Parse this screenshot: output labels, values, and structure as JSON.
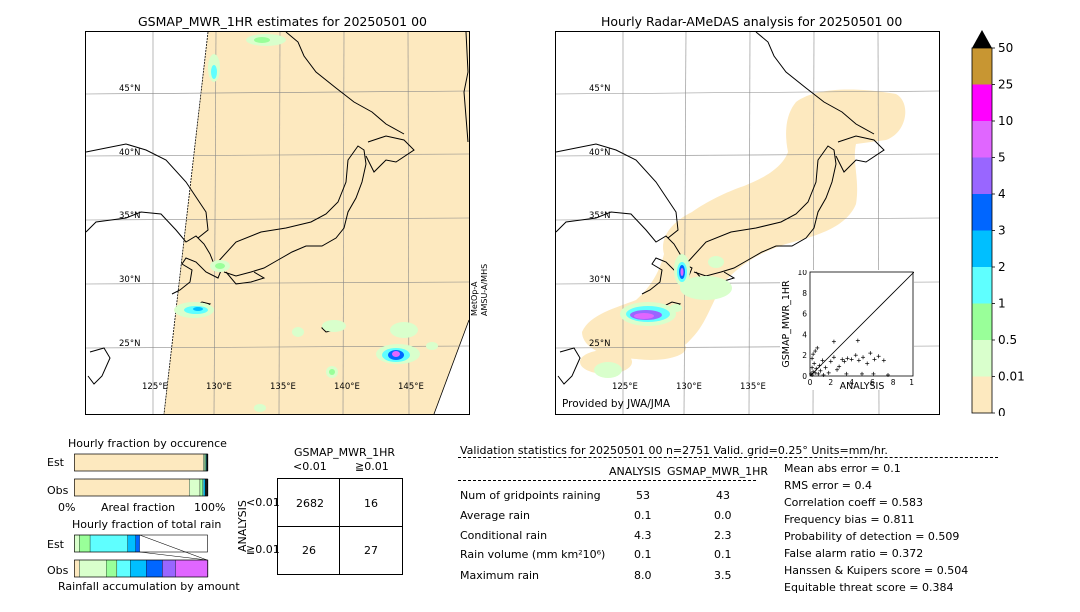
{
  "left_map": {
    "title": "GSMAP_MWR_1HR estimates for 20250501 00",
    "side_label_1": "MetOp-A",
    "side_label_2": "AMSU-A/MHS",
    "lat_labels": [
      "45°N",
      "40°N",
      "35°N",
      "30°N",
      "25°N"
    ],
    "lon_labels": [
      "125°E",
      "130°E",
      "135°E",
      "140°E",
      "145°E"
    ]
  },
  "right_map": {
    "title": "Hourly Radar-AMeDAS analysis for 20250501 00",
    "credit": "Provided by JWA/JMA",
    "lat_labels": [
      "45°N",
      "40°N",
      "35°N",
      "30°N",
      "25°N"
    ],
    "lon_labels": [
      "125°E",
      "130°E",
      "135°E"
    ]
  },
  "colorbar": {
    "labels": [
      "50",
      "25",
      "10",
      "5",
      "4",
      "3",
      "2",
      "1",
      "0.5",
      "0.01",
      "0"
    ],
    "colors": [
      "#c89632",
      "#ff00ff",
      "#e066ff",
      "#9966ff",
      "#0066ff",
      "#00bfff",
      "#5fffff",
      "#99ff99",
      "#d9ffcc",
      "#fde9bf"
    ],
    "extend_color": "#000000"
  },
  "chart_data": [
    {
      "type": "scatter",
      "name_hint": "inset",
      "xlabel": "ANALYSIS",
      "ylabel": "GSMAP_MWR_1HR",
      "xlim": [
        0,
        10
      ],
      "ylim": [
        0,
        10
      ],
      "ticks": [
        "0",
        "2",
        "4",
        "6",
        "8",
        "10"
      ],
      "points": [
        [
          0.1,
          0.2
        ],
        [
          0.2,
          0.1
        ],
        [
          0.3,
          0.4
        ],
        [
          0.2,
          0.8
        ],
        [
          0.5,
          0.3
        ],
        [
          0.4,
          1.2
        ],
        [
          0.6,
          0.7
        ],
        [
          0.8,
          0.2
        ],
        [
          1.0,
          0.5
        ],
        [
          0.3,
          2.1
        ],
        [
          0.5,
          2.4
        ],
        [
          1.2,
          1.5
        ],
        [
          1.5,
          0.8
        ],
        [
          0.2,
          1.7
        ],
        [
          2.0,
          1.4
        ],
        [
          2.3,
          1.8
        ],
        [
          2.6,
          0.6
        ],
        [
          3.1,
          1.6
        ],
        [
          3.3,
          1.4
        ],
        [
          3.6,
          1.7
        ],
        [
          4.0,
          1.6
        ],
        [
          4.4,
          2.0
        ],
        [
          4.7,
          1.5
        ],
        [
          5.1,
          1.8
        ],
        [
          5.5,
          1.2
        ],
        [
          5.8,
          2.2
        ],
        [
          6.2,
          1.6
        ],
        [
          6.6,
          1.9
        ],
        [
          7.1,
          1.5
        ],
        [
          4.6,
          3.4
        ],
        [
          2.3,
          3.3
        ],
        [
          0.7,
          2.7
        ],
        [
          1.8,
          0.3
        ],
        [
          3.5,
          0.2
        ],
        [
          5.0,
          0.2
        ],
        [
          6.1,
          0.2
        ],
        [
          7.5,
          0.1
        ],
        [
          1.3,
          0.1
        ],
        [
          0.9,
          1.0
        ],
        [
          2.8,
          0.9
        ]
      ]
    },
    {
      "type": "bar",
      "name_hint": "occurrence",
      "title": "Hourly fraction by occurence",
      "categories": [
        "Est",
        "Obs"
      ],
      "xlabel": "Areal fraction",
      "xtick_left": "0%",
      "xtick_right": "100%",
      "values": [
        [
          {
            "frac": 0.965,
            "color": "#fde9bf"
          },
          {
            "frac": 0.01,
            "color": "#d9ffcc"
          },
          {
            "frac": 0.007,
            "color": "#99ff99"
          },
          {
            "frac": 0.006,
            "color": "#5fffff"
          },
          {
            "frac": 0.004,
            "color": "#00bfff"
          },
          {
            "frac": 0.008,
            "color": "#1a1a1a"
          }
        ],
        [
          {
            "frac": 0.86,
            "color": "#fde9bf"
          },
          {
            "frac": 0.08,
            "color": "#d9ffcc"
          },
          {
            "frac": 0.02,
            "color": "#99ff99"
          },
          {
            "frac": 0.01,
            "color": "#5fffff"
          },
          {
            "frac": 0.01,
            "color": "#00bfff"
          },
          {
            "frac": 0.02,
            "color": "#1a1a1a"
          }
        ]
      ]
    },
    {
      "type": "bar",
      "name_hint": "amount",
      "title": "Hourly fraction of total rain",
      "categories": [
        "Est",
        "Obs"
      ],
      "xlabel": "Rainfall accumulation by amount",
      "values": [
        [
          {
            "frac": 0.04,
            "color": "#d9ffcc"
          },
          {
            "frac": 0.08,
            "color": "#99ff99"
          },
          {
            "frac": 0.28,
            "color": "#5fffff"
          },
          {
            "frac": 0.06,
            "color": "#00bfff"
          },
          {
            "frac": 0.03,
            "color": "#0066ff"
          }
        ],
        [
          {
            "frac": 0.04,
            "color": "#fde9bf"
          },
          {
            "frac": 0.2,
            "color": "#d9ffcc"
          },
          {
            "frac": 0.08,
            "color": "#99ff99"
          },
          {
            "frac": 0.1,
            "color": "#5fffff"
          },
          {
            "frac": 0.12,
            "color": "#00bfff"
          },
          {
            "frac": 0.12,
            "color": "#0066ff"
          },
          {
            "frac": 0.1,
            "color": "#9966ff"
          },
          {
            "frac": 0.24,
            "color": "#e066ff"
          }
        ]
      ]
    },
    {
      "type": "table",
      "name_hint": "contingency",
      "title": "GSMAP_MWR_1HR",
      "col_labels": [
        "<0.01",
        "≧0.01"
      ],
      "row_labels": [
        "<0.01",
        "≧0.01"
      ],
      "row_axis_label": "ANALYSIS",
      "cells": [
        [
          "2682",
          "16"
        ],
        [
          "26",
          "27"
        ]
      ]
    }
  ],
  "validation": {
    "header": "Validation statistics for 20250501 00  n=2751 Valid. grid=0.25° Units=mm/hr.",
    "col_analysis": "ANALYSIS",
    "col_gsmap": "GSMAP_MWR_1HR",
    "rows": [
      {
        "label": "Num of gridpoints raining",
        "analysis": "53",
        "gsmap": "43"
      },
      {
        "label": "Average rain",
        "analysis": "0.1",
        "gsmap": "0.0"
      },
      {
        "label": "Conditional rain",
        "analysis": "4.3",
        "gsmap": "2.3"
      },
      {
        "label": "Rain volume (mm km²10⁶)",
        "analysis": "0.1",
        "gsmap": "0.1"
      },
      {
        "label": "Maximum rain",
        "analysis": "8.0",
        "gsmap": "3.5"
      }
    ],
    "scores": [
      "Mean abs error =    0.1",
      "RMS error =    0.4",
      "Correlation coeff =  0.583",
      "Frequency bias =  0.811",
      "Probability of detection =  0.509",
      "False alarm ratio =  0.372",
      "Hanssen & Kuipers score =  0.504",
      "Equitable threat score =  0.384"
    ]
  }
}
